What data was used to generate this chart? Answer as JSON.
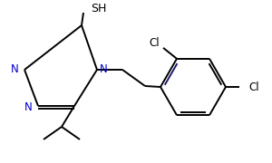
{
  "background_color": "#ffffff",
  "line_color": "#000000",
  "bond_color_dark": "#1a1a6e",
  "atom_colors": {
    "N": "#0000cd",
    "Cl": "#000000"
  },
  "font_size": 8.5,
  "lw": 1.4
}
